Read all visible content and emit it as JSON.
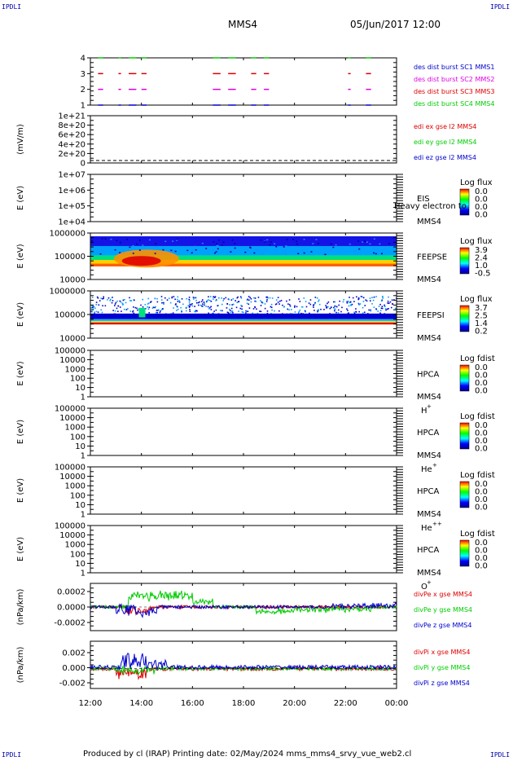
{
  "corners": {
    "tl": "IPDLI",
    "tr": "IPDLI",
    "bl": "IPDLI",
    "br": "IPDLI"
  },
  "header": {
    "spacecraft": "MMS4",
    "datetime": "05/Jun/2017 12:00"
  },
  "footer": {
    "text": "Produced by cl (IRAP)   Printing date: 02/May/2024   mms_mms4_srvy_vue_web2.cl"
  },
  "x_axis": {
    "ticks": [
      "12:00",
      "14:00",
      "16:00",
      "18:00",
      "20:00",
      "22:00",
      "00:00"
    ]
  },
  "colors": {
    "red": "#dd0000",
    "green": "#00cc00",
    "blue": "#0000cc",
    "magenta": "#dd00dd"
  },
  "chart_data": [
    {
      "type": "line",
      "id": "burst",
      "ylabel": "",
      "yticks": [
        "1",
        "2",
        "3",
        "4"
      ],
      "legend": [
        {
          "text": "des dist burst SC1 MMS1",
          "color": "#0000cc"
        },
        {
          "text": "des dist burst SC2 MMS2",
          "color": "#dd00dd"
        },
        {
          "text": "des dist burst SC3 MMS3",
          "color": "#dd0000"
        },
        {
          "text": "des dist burst SC4 MMS4",
          "color": "#00cc00"
        }
      ],
      "segments_hours": [
        [
          12.3,
          12.5
        ],
        [
          13.1,
          13.2
        ],
        [
          13.5,
          13.8
        ],
        [
          14.0,
          14.2
        ],
        [
          16.8,
          17.1
        ],
        [
          17.4,
          17.7
        ],
        [
          18.3,
          18.5
        ],
        [
          18.8,
          19.0
        ],
        [
          22.1,
          22.2
        ],
        [
          22.8,
          23.0
        ]
      ]
    },
    {
      "type": "line",
      "id": "efield",
      "ylabel": "(mV/m)",
      "yticks": [
        "0",
        "2e+20",
        "4e+20",
        "6e+20",
        "8e+20",
        "1e+21"
      ],
      "legend": [
        {
          "text": "edi ex gse l2 MMS4",
          "color": "#dd0000"
        },
        {
          "text": "edi ey gse l2 MMS4",
          "color": "#00cc00"
        },
        {
          "text": "edi ez gse l2 MMS4",
          "color": "#0000cc"
        }
      ]
    },
    {
      "type": "heatmap",
      "id": "eis",
      "ylabel": "E (eV)",
      "yticks": [
        "1e+04",
        "1e+05",
        "1e+06",
        "1e+07"
      ],
      "instrument": "EIS",
      "sc": "MMS4",
      "extra": "Heavy electron to",
      "cbar": {
        "title": "Log flux",
        "ticks": [
          "0.0",
          "0.0",
          "0.0",
          "0.0"
        ]
      }
    },
    {
      "type": "heatmap",
      "id": "feepse",
      "ylabel": "E (eV)",
      "yticks": [
        "10000",
        "100000",
        "1000000"
      ],
      "instrument": "FEEPSE",
      "sc": "MMS4",
      "cbar": {
        "title": "Log flux",
        "ticks": [
          "3.9",
          "2.4",
          "1.0",
          "-0.5"
        ]
      }
    },
    {
      "type": "heatmap",
      "id": "feepsi",
      "ylabel": "E (eV)",
      "yticks": [
        "10000",
        "100000",
        "1000000"
      ],
      "instrument": "FEEPSI",
      "sc": "MMS4",
      "cbar": {
        "title": "Log flux",
        "ticks": [
          "3.7",
          "2.5",
          "1.4",
          "0.2"
        ]
      }
    },
    {
      "type": "heatmap",
      "id": "hpca_h",
      "ylabel": "E (eV)",
      "yticks": [
        "1",
        "10",
        "100",
        "1000",
        "10000",
        "100000"
      ],
      "instrument": "HPCA",
      "sc": "MMS4",
      "species": "H",
      "charge": "+",
      "cbar": {
        "title": "Log fdist",
        "ticks": [
          "0.0",
          "0.0",
          "0.0",
          "0.0"
        ]
      }
    },
    {
      "type": "heatmap",
      "id": "hpca_he",
      "ylabel": "E (eV)",
      "yticks": [
        "1",
        "10",
        "100",
        "1000",
        "10000",
        "100000"
      ],
      "instrument": "HPCA",
      "sc": "MMS4",
      "species": "He",
      "charge": "+",
      "cbar": {
        "title": "Log fdist",
        "ticks": [
          "0.0",
          "0.0",
          "0.0",
          "0.0"
        ]
      }
    },
    {
      "type": "heatmap",
      "id": "hpca_he2",
      "ylabel": "E (eV)",
      "yticks": [
        "1",
        "10",
        "100",
        "1000",
        "10000",
        "100000"
      ],
      "instrument": "HPCA",
      "sc": "MMS4",
      "species": "He",
      "charge": "++",
      "cbar": {
        "title": "Log fdist",
        "ticks": [
          "0.0",
          "0.0",
          "0.0",
          "0.0"
        ]
      }
    },
    {
      "type": "heatmap",
      "id": "hpca_o",
      "ylabel": "E (eV)",
      "yticks": [
        "1",
        "10",
        "100",
        "1000",
        "10000",
        "100000"
      ],
      "instrument": "HPCA",
      "sc": "MMS4",
      "species": "O",
      "charge": "+",
      "cbar": {
        "title": "Log fdist",
        "ticks": [
          "0.0",
          "0.0",
          "0.0",
          "0.0"
        ]
      }
    },
    {
      "type": "line",
      "id": "divpe",
      "ylabel": "(nPa/km)",
      "yticks": [
        "-0.0002",
        "0.0000",
        "0.0002"
      ],
      "legend": [
        {
          "text": "divPe x gse MMS4",
          "color": "#dd0000"
        },
        {
          "text": "divPe y gse MMS4",
          "color": "#00cc00"
        },
        {
          "text": "divPe z gse MMS4",
          "color": "#0000cc"
        }
      ]
    },
    {
      "type": "line",
      "id": "divpi",
      "ylabel": "(nPa/km)",
      "yticks": [
        "-0.002",
        "0.000",
        "0.002"
      ],
      "legend": [
        {
          "text": "divPi x gse MMS4",
          "color": "#dd0000"
        },
        {
          "text": "divPi y gse MMS4",
          "color": "#00cc00"
        },
        {
          "text": "divPi z gse MMS4",
          "color": "#0000cc"
        }
      ]
    }
  ]
}
